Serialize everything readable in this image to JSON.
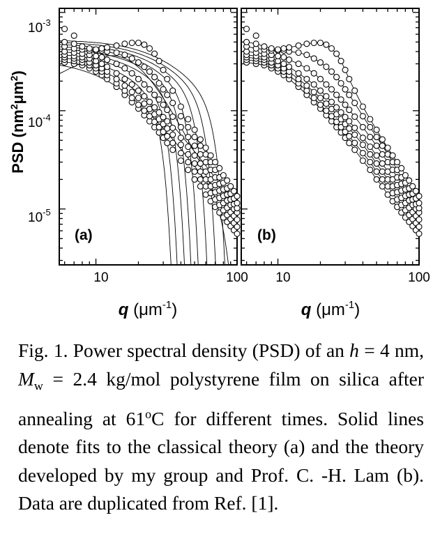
{
  "chart_data": [
    {
      "type": "scatter",
      "panel_label": "(a)",
      "xscale": "log",
      "yscale": "log",
      "xlim": [
        5.5,
        100
      ],
      "ylim": [
        2.7e-06,
        0.0011
      ],
      "xticks": [
        10,
        100
      ],
      "yticks": [
        1e-05,
        0.0001,
        0.001
      ],
      "xlabel": "q (μm⁻¹)",
      "ylabel": "PSD (nm²μm²)",
      "series": [
        {
          "x": [
            6,
            7,
            8,
            9,
            10,
            11,
            12,
            14,
            16,
            18,
            20,
            22,
            24,
            26,
            28,
            30,
            32,
            35,
            40,
            45,
            50,
            55,
            60,
            65,
            70,
            75,
            80,
            85,
            90,
            95,
            100
          ],
          "y": [
            0.00031,
            0.0003,
            0.00029,
            0.00027,
            0.00025,
            0.00023,
            0.00021,
            0.000175,
            0.000145,
            0.000122,
            0.000105,
            9e-05,
            7.8e-05,
            6.8e-05,
            6e-05,
            5.3e-05,
            4.7e-05,
            4e-05,
            3.1e-05,
            2.5e-05,
            2e-05,
            1.7e-05,
            1.4e-05,
            1.2e-05,
            1.05e-05,
            9.2e-06,
            8.2e-06,
            7.4e-06,
            6.7e-06,
            6.1e-06,
            5.6e-06
          ]
        },
        {
          "x": [
            6,
            7,
            8,
            9,
            10,
            11,
            12,
            14,
            16,
            18,
            20,
            22,
            24,
            26,
            28,
            30,
            32,
            35,
            40,
            45,
            50,
            55,
            60,
            65,
            70,
            75,
            80,
            85,
            90,
            95,
            100
          ],
          "y": [
            0.00033,
            0.00032,
            0.00031,
            0.00029,
            0.00027,
            0.00025,
            0.00023,
            0.00019,
            0.00016,
            0.000135,
            0.000115,
            0.0001,
            8.8e-05,
            7.7e-05,
            6.8e-05,
            6.1e-05,
            5.5e-05,
            4.7e-05,
            3.7e-05,
            3e-05,
            2.4e-05,
            2e-05,
            1.7e-05,
            1.45e-05,
            1.25e-05,
            1.1e-05,
            9.7e-06,
            8.7e-06,
            7.9e-06,
            7.2e-06,
            6.6e-06
          ]
        },
        {
          "x": [
            6,
            7,
            8,
            9,
            10,
            11,
            12,
            14,
            16,
            18,
            20,
            22,
            24,
            26,
            28,
            30,
            32,
            35,
            40,
            45,
            50,
            55,
            60,
            65,
            70,
            75,
            80,
            85,
            90,
            95,
            100
          ],
          "y": [
            0.00035,
            0.00034,
            0.00033,
            0.00031,
            0.00029,
            0.00027,
            0.00025,
            0.00021,
            0.00018,
            0.000155,
            0.000135,
            0.000118,
            0.000104,
            9.2e-05,
            8.2e-05,
            7.3e-05,
            6.6e-05,
            5.7e-05,
            4.5e-05,
            3.6e-05,
            2.9e-05,
            2.4e-05,
            2e-05,
            1.7e-05,
            1.48e-05,
            1.3e-05,
            1.15e-05,
            1.03e-05,
            9.3e-06,
            8.5e-06,
            7.8e-06
          ]
        },
        {
          "x": [
            6,
            7,
            8,
            9,
            10,
            11,
            12,
            14,
            16,
            18,
            20,
            22,
            24,
            26,
            28,
            30,
            32,
            35,
            40,
            45,
            50,
            55,
            60,
            65,
            70,
            75,
            80,
            85,
            90,
            95,
            100
          ],
          "y": [
            0.00037,
            0.00036,
            0.00035,
            0.00034,
            0.00032,
            0.0003,
            0.00028,
            0.00024,
            0.00021,
            0.000185,
            0.00016,
            0.00014,
            0.000123,
            0.000108,
            9.6e-05,
            8.6e-05,
            7.8e-05,
            6.7e-05,
            5.3e-05,
            4.3e-05,
            3.5e-05,
            2.9e-05,
            2.4e-05,
            2e-05,
            1.75e-05,
            1.54e-05,
            1.36e-05,
            1.22e-05,
            1.1e-05,
            1e-05,
            9.2e-06
          ]
        },
        {
          "x": [
            6,
            7,
            8,
            9,
            10,
            11,
            12,
            14,
            16,
            18,
            20,
            22,
            24,
            26,
            28,
            30,
            32,
            35,
            40,
            45,
            50,
            55,
            60,
            65,
            70,
            75,
            80,
            85,
            90,
            95,
            100
          ],
          "y": [
            0.0004,
            0.00039,
            0.00038,
            0.00037,
            0.00036,
            0.00035,
            0.00033,
            0.0003,
            0.00027,
            0.00024,
            0.00021,
            0.000185,
            0.000165,
            0.000145,
            0.00013,
            0.000115,
            0.000102,
            8.7e-05,
            6.8e-05,
            5.4e-05,
            4.4e-05,
            3.6e-05,
            3e-05,
            2.5e-05,
            2.1e-05,
            1.8e-05,
            1.58e-05,
            1.4e-05,
            1.25e-05,
            1.12e-05,
            1.02e-05
          ]
        },
        {
          "x": [
            6,
            7,
            8,
            9,
            10,
            11,
            12,
            14,
            16,
            18,
            20,
            22,
            24,
            26,
            28,
            30,
            32,
            35,
            40,
            45,
            50,
            55,
            60,
            65,
            70,
            75,
            80,
            85,
            90,
            95,
            100
          ],
          "y": [
            0.00045,
            0.00043,
            0.00042,
            0.00041,
            0.00041,
            0.00041,
            0.0004,
            0.00039,
            0.00037,
            0.00034,
            0.00031,
            0.00028,
            0.00025,
            0.00022,
            0.00019,
            0.000165,
            0.000145,
            0.00012,
            8.8e-05,
            6.8e-05,
            5.4e-05,
            4.4e-05,
            3.6e-05,
            3e-05,
            2.5e-05,
            2.1e-05,
            1.85e-05,
            1.62e-05,
            1.43e-05,
            1.28e-05,
            1.15e-05
          ]
        },
        {
          "x": [
            6,
            7,
            8,
            9,
            10,
            11,
            12,
            14,
            16,
            18,
            20,
            22,
            24,
            26,
            28,
            30,
            32,
            35,
            40,
            45,
            50,
            55,
            60,
            65,
            70,
            75,
            80,
            85,
            90,
            95,
            100
          ],
          "y": [
            0.0005,
            0.00048,
            0.00045,
            0.00043,
            0.00042,
            0.00043,
            0.00044,
            0.00046,
            0.00048,
            0.00049,
            0.00049,
            0.00047,
            0.00043,
            0.00038,
            0.00032,
            0.00026,
            0.00021,
            0.00016,
            0.00011,
            8.2e-05,
            6.4e-05,
            5.1e-05,
            4.2e-05,
            3.5e-05,
            3e-05,
            2.6e-05,
            2.2e-05,
            1.95e-05,
            1.7e-05,
            1.52e-05,
            1.35e-05
          ]
        },
        {
          "x": [
            6,
            7
          ],
          "y": [
            0.00068,
            0.00058
          ]
        }
      ]
    },
    {
      "type": "scatter",
      "panel_label": "(b)",
      "xscale": "log",
      "yscale": "log",
      "xlim": [
        5.5,
        100
      ],
      "ylim": [
        2.7e-06,
        0.0011
      ],
      "xticks": [
        10,
        100
      ],
      "yticks": [
        1e-05,
        0.0001,
        0.001
      ],
      "xlabel": "q (μm⁻¹)",
      "ylabel": "",
      "series": [
        {
          "x": [
            6,
            7,
            8,
            9,
            10,
            11,
            12,
            14,
            16,
            18,
            20,
            22,
            24,
            26,
            28,
            30,
            32,
            35,
            40,
            45,
            50,
            55,
            60,
            65,
            70,
            75,
            80,
            85,
            90,
            95,
            100
          ],
          "y": [
            0.00031,
            0.0003,
            0.00029,
            0.00027,
            0.00025,
            0.00023,
            0.00021,
            0.000175,
            0.000145,
            0.000122,
            0.000105,
            9e-05,
            7.8e-05,
            6.8e-05,
            6e-05,
            5.3e-05,
            4.7e-05,
            4e-05,
            3.1e-05,
            2.5e-05,
            2e-05,
            1.7e-05,
            1.4e-05,
            1.2e-05,
            1.05e-05,
            9.2e-06,
            8.2e-06,
            7.4e-06,
            6.7e-06,
            6.1e-06,
            5.6e-06
          ]
        },
        {
          "x": [
            6,
            7,
            8,
            9,
            10,
            11,
            12,
            14,
            16,
            18,
            20,
            22,
            24,
            26,
            28,
            30,
            32,
            35,
            40,
            45,
            50,
            55,
            60,
            65,
            70,
            75,
            80,
            85,
            90,
            95,
            100
          ],
          "y": [
            0.00033,
            0.00032,
            0.00031,
            0.00029,
            0.00027,
            0.00025,
            0.00023,
            0.00019,
            0.00016,
            0.000135,
            0.000115,
            0.0001,
            8.8e-05,
            7.7e-05,
            6.8e-05,
            6.1e-05,
            5.5e-05,
            4.7e-05,
            3.7e-05,
            3e-05,
            2.4e-05,
            2e-05,
            1.7e-05,
            1.45e-05,
            1.25e-05,
            1.1e-05,
            9.7e-06,
            8.7e-06,
            7.9e-06,
            7.2e-06,
            6.6e-06
          ]
        },
        {
          "x": [
            6,
            7,
            8,
            9,
            10,
            11,
            12,
            14,
            16,
            18,
            20,
            22,
            24,
            26,
            28,
            30,
            32,
            35,
            40,
            45,
            50,
            55,
            60,
            65,
            70,
            75,
            80,
            85,
            90,
            95,
            100
          ],
          "y": [
            0.00035,
            0.00034,
            0.00033,
            0.00031,
            0.00029,
            0.00027,
            0.00025,
            0.00021,
            0.00018,
            0.000155,
            0.000135,
            0.000118,
            0.000104,
            9.2e-05,
            8.2e-05,
            7.3e-05,
            6.6e-05,
            5.7e-05,
            4.5e-05,
            3.6e-05,
            2.9e-05,
            2.4e-05,
            2e-05,
            1.7e-05,
            1.48e-05,
            1.3e-05,
            1.15e-05,
            1.03e-05,
            9.3e-06,
            8.5e-06,
            7.8e-06
          ]
        },
        {
          "x": [
            6,
            7,
            8,
            9,
            10,
            11,
            12,
            14,
            16,
            18,
            20,
            22,
            24,
            26,
            28,
            30,
            32,
            35,
            40,
            45,
            50,
            55,
            60,
            65,
            70,
            75,
            80,
            85,
            90,
            95,
            100
          ],
          "y": [
            0.00037,
            0.00036,
            0.00035,
            0.00034,
            0.00032,
            0.0003,
            0.00028,
            0.00024,
            0.00021,
            0.000185,
            0.00016,
            0.00014,
            0.000123,
            0.000108,
            9.6e-05,
            8.6e-05,
            7.8e-05,
            6.7e-05,
            5.3e-05,
            4.3e-05,
            3.5e-05,
            2.9e-05,
            2.4e-05,
            2e-05,
            1.75e-05,
            1.54e-05,
            1.36e-05,
            1.22e-05,
            1.1e-05,
            1e-05,
            9.2e-06
          ]
        },
        {
          "x": [
            6,
            7,
            8,
            9,
            10,
            11,
            12,
            14,
            16,
            18,
            20,
            22,
            24,
            26,
            28,
            30,
            32,
            35,
            40,
            45,
            50,
            55,
            60,
            65,
            70,
            75,
            80,
            85,
            90,
            95,
            100
          ],
          "y": [
            0.0004,
            0.00039,
            0.00038,
            0.00037,
            0.00036,
            0.00035,
            0.00033,
            0.0003,
            0.00027,
            0.00024,
            0.00021,
            0.000185,
            0.000165,
            0.000145,
            0.00013,
            0.000115,
            0.000102,
            8.7e-05,
            6.8e-05,
            5.4e-05,
            4.4e-05,
            3.6e-05,
            3e-05,
            2.5e-05,
            2.1e-05,
            1.8e-05,
            1.58e-05,
            1.4e-05,
            1.25e-05,
            1.12e-05,
            1.02e-05
          ]
        },
        {
          "x": [
            6,
            7,
            8,
            9,
            10,
            11,
            12,
            14,
            16,
            18,
            20,
            22,
            24,
            26,
            28,
            30,
            32,
            35,
            40,
            45,
            50,
            55,
            60,
            65,
            70,
            75,
            80,
            85,
            90,
            95,
            100
          ],
          "y": [
            0.00045,
            0.00043,
            0.00042,
            0.00041,
            0.00041,
            0.00041,
            0.0004,
            0.00039,
            0.00037,
            0.00034,
            0.00031,
            0.00028,
            0.00025,
            0.00022,
            0.00019,
            0.000165,
            0.000145,
            0.00012,
            8.8e-05,
            6.8e-05,
            5.4e-05,
            4.4e-05,
            3.6e-05,
            3e-05,
            2.5e-05,
            2.1e-05,
            1.85e-05,
            1.62e-05,
            1.43e-05,
            1.28e-05,
            1.15e-05
          ]
        },
        {
          "x": [
            6,
            7,
            8,
            9,
            10,
            11,
            12,
            14,
            16,
            18,
            20,
            22,
            24,
            26,
            28,
            30,
            32,
            35,
            40,
            45,
            50,
            55,
            60,
            65,
            70,
            75,
            80,
            85,
            90,
            95,
            100
          ],
          "y": [
            0.0005,
            0.00048,
            0.00045,
            0.00043,
            0.00042,
            0.00043,
            0.00044,
            0.00046,
            0.00048,
            0.00049,
            0.00049,
            0.00047,
            0.00043,
            0.00038,
            0.00032,
            0.00026,
            0.00021,
            0.00016,
            0.00011,
            8.2e-05,
            6.4e-05,
            5.1e-05,
            4.2e-05,
            3.5e-05,
            3e-05,
            2.6e-05,
            2.2e-05,
            1.95e-05,
            1.7e-05,
            1.52e-05,
            1.35e-05
          ]
        },
        {
          "x": [
            6,
            7
          ],
          "y": [
            0.00068,
            0.00058
          ]
        }
      ]
    }
  ],
  "tick_labels": {
    "y_top": "10",
    "y_top_exp": "-3",
    "y_mid": "10",
    "y_mid_exp": "-4",
    "y_bot": "10",
    "y_bot_exp": "-5",
    "x_10": "10",
    "x_100": "100"
  },
  "axis_labels": {
    "y_main": "PSD (nm",
    "y_sup1": "2",
    "y_mid": "μm",
    "y_sup2": "2",
    "y_end": ")",
    "x_q": "q",
    "x_unit": " (μm",
    "x_sup": "-1",
    "x_end": ")"
  },
  "caption": {
    "line1": "Fig. 1. Power spectral density (PSD) of an ",
    "h": "h",
    "line2": " = 4 nm, ",
    "M": "M",
    "w": "w",
    "line3": " = 2.4 kg/mol polystyrene film on silica after annealing at 61",
    "deg": "o",
    "line4": "C for different times. Solid lines denote fits to the classical theory (a) and the theory developed by my group and Prof. C. -H. Lam (b). Data are duplicated from Ref. [1]."
  }
}
